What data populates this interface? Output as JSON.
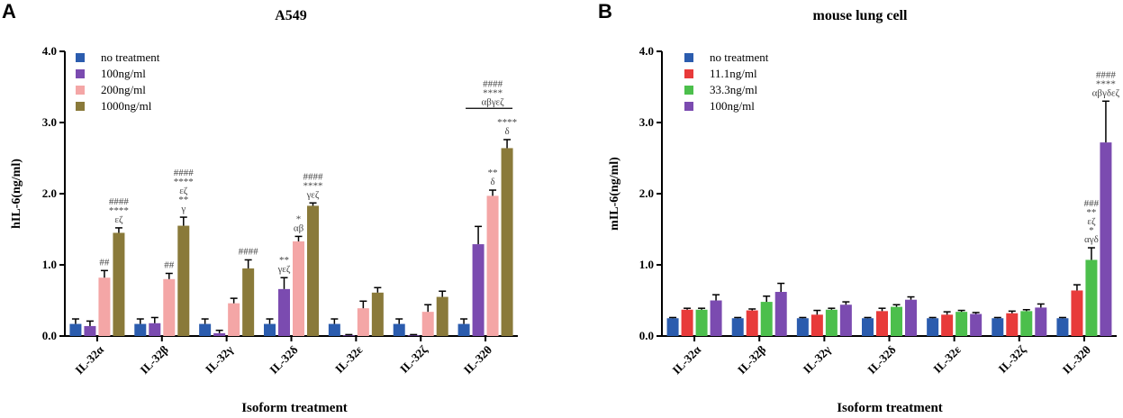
{
  "chart_data": [
    {
      "panel": "A",
      "type": "bar",
      "title": "A549",
      "ylabel": "hIL-6(ng/ml)",
      "xlabel": "Isoform treatment",
      "ylim": [
        0,
        4.0
      ],
      "yticks": [
        "0.0",
        "1.0",
        "2.0",
        "3.0",
        "4.0"
      ],
      "categories": [
        "IL-32α",
        "IL-32β",
        "IL-32γ",
        "IL-32δ",
        "IL-32ε",
        "IL-32ζ",
        "IL-32θ"
      ],
      "series": [
        {
          "name": "no treatment",
          "color": "#2b5cae",
          "values": [
            0.17,
            0.17,
            0.17,
            0.17,
            0.17,
            0.17,
            0.17
          ],
          "errors": [
            0.07,
            0.07,
            0.07,
            0.07,
            0.07,
            0.07,
            0.07
          ]
        },
        {
          "name": "100ng/ml",
          "color": "#7b4bb0",
          "values": [
            0.14,
            0.18,
            0.04,
            0.66,
            0.01,
            0.01,
            1.29
          ],
          "errors": [
            0.07,
            0.08,
            0.04,
            0.16,
            0.01,
            0.01,
            0.25
          ]
        },
        {
          "name": "200ng/ml",
          "color": "#f4a6a6",
          "values": [
            0.82,
            0.8,
            0.46,
            1.33,
            0.39,
            0.34,
            1.97
          ],
          "errors": [
            0.1,
            0.08,
            0.07,
            0.07,
            0.1,
            0.1,
            0.08
          ]
        },
        {
          "name": "1000ng/ml",
          "color": "#8a7a3a",
          "values": [
            1.45,
            1.55,
            0.95,
            1.83,
            0.61,
            0.55,
            2.64
          ],
          "errors": [
            0.07,
            0.12,
            0.12,
            0.04,
            0.07,
            0.08,
            0.12
          ]
        }
      ],
      "annotations": [
        {
          "category": 0,
          "series": 2,
          "lines": [
            "##"
          ]
        },
        {
          "category": 0,
          "series": 3,
          "lines": [
            "####",
            "****",
            "εζ"
          ]
        },
        {
          "category": 1,
          "series": 2,
          "lines": [
            "##"
          ]
        },
        {
          "category": 1,
          "series": 3,
          "lines": [
            "####",
            "****",
            "εζ",
            "**",
            "γ"
          ]
        },
        {
          "category": 2,
          "series": 3,
          "lines": [
            "####"
          ]
        },
        {
          "category": 3,
          "series": 1,
          "lines": [
            "**",
            "γεζ"
          ]
        },
        {
          "category": 3,
          "series": 2,
          "lines": [
            "*",
            "αβ"
          ]
        },
        {
          "category": 3,
          "series": 3,
          "lines": [
            "####",
            "****",
            "γεζ"
          ]
        },
        {
          "category": 6,
          "series": 2,
          "lines": [
            "**",
            "δ"
          ]
        },
        {
          "category": 6,
          "series": 3,
          "lines": [
            "****",
            "δ"
          ]
        },
        {
          "category": 6,
          "series": 3,
          "lines": [
            "####",
            "****",
            "αβγεζ"
          ],
          "top": true
        }
      ]
    },
    {
      "panel": "B",
      "type": "bar",
      "title": "mouse lung cell",
      "ylabel": "mIL-6(ng/ml)",
      "xlabel": "Isoform treatment",
      "ylim": [
        0,
        4.0
      ],
      "yticks": [
        "0.0",
        "1.0",
        "2.0",
        "3.0",
        "4.0"
      ],
      "categories": [
        "IL-32α",
        "IL-32β",
        "IL-32γ",
        "IL-32δ",
        "IL-32ε",
        "IL-32ζ",
        "IL-32θ"
      ],
      "series": [
        {
          "name": "no treatment",
          "color": "#2b5cae",
          "values": [
            0.25,
            0.25,
            0.25,
            0.25,
            0.25,
            0.25,
            0.25
          ],
          "errors": [
            0.01,
            0.01,
            0.01,
            0.01,
            0.01,
            0.01,
            0.01
          ]
        },
        {
          "name": "11.1ng/ml",
          "color": "#e83a3a",
          "values": [
            0.37,
            0.36,
            0.3,
            0.35,
            0.3,
            0.32,
            0.64
          ],
          "errors": [
            0.02,
            0.02,
            0.06,
            0.04,
            0.04,
            0.03,
            0.08
          ]
        },
        {
          "name": "33.3ng/ml",
          "color": "#4cbf4c",
          "values": [
            0.37,
            0.48,
            0.37,
            0.41,
            0.34,
            0.35,
            1.07
          ],
          "errors": [
            0.02,
            0.08,
            0.02,
            0.03,
            0.02,
            0.02,
            0.17
          ]
        },
        {
          "name": "100ng/ml",
          "color": "#7b4bb0",
          "values": [
            0.5,
            0.62,
            0.44,
            0.51,
            0.31,
            0.4,
            2.72
          ],
          "errors": [
            0.08,
            0.12,
            0.04,
            0.04,
            0.02,
            0.05,
            0.58
          ]
        }
      ],
      "annotations": [
        {
          "category": 6,
          "series": 2,
          "lines": [
            "###",
            "**",
            "εζ",
            "*",
            "αγδ"
          ]
        },
        {
          "category": 6,
          "series": 3,
          "lines": [
            "####",
            "****",
            "αβγδεζ"
          ]
        }
      ]
    }
  ]
}
